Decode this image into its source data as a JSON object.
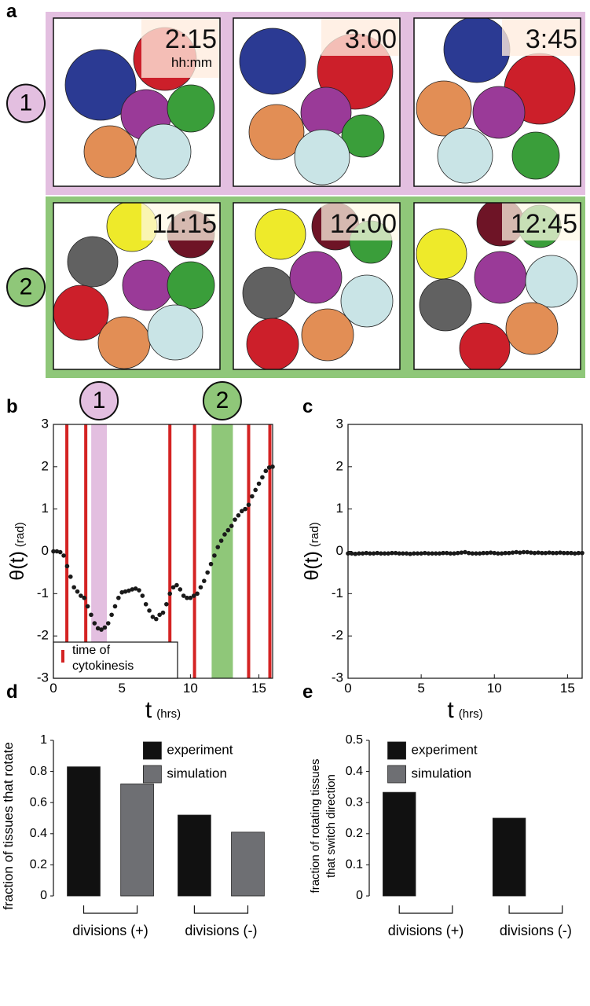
{
  "panel_a": {
    "label": "a",
    "unit": "hh:mm",
    "rows": [
      {
        "label": "1",
        "times": [
          "2:15",
          "3:00",
          "3:45"
        ]
      },
      {
        "label": "2",
        "times": [
          "11:15",
          "12:00",
          "12:45"
        ]
      }
    ]
  },
  "chart_data": [
    {
      "type": "scatter",
      "panel": "b",
      "ylabel": "θ(t)",
      "ylabel_unit": "(rad)",
      "xlabel": "t",
      "xlabel_unit": "(hrs)",
      "color": "#1a1a1a",
      "x": [
        0,
        0.25,
        0.5,
        0.75,
        1,
        1.25,
        1.5,
        1.75,
        2,
        2.25,
        2.5,
        2.75,
        3,
        3.25,
        3.5,
        3.75,
        4,
        4.25,
        4.5,
        4.75,
        5,
        5.25,
        5.5,
        5.75,
        6,
        6.25,
        6.5,
        6.75,
        7,
        7.25,
        7.5,
        7.75,
        8,
        8.25,
        8.5,
        8.75,
        9,
        9.25,
        9.5,
        9.75,
        10,
        10.25,
        10.5,
        10.75,
        11,
        11.25,
        11.5,
        11.75,
        12,
        12.25,
        12.5,
        12.75,
        13,
        13.25,
        13.5,
        13.75,
        14,
        14.25,
        14.5,
        14.75,
        15,
        15.25,
        15.5,
        15.75,
        16
      ],
      "values": [
        0,
        0,
        -0.02,
        -0.1,
        -0.35,
        -0.6,
        -0.85,
        -0.95,
        -1.05,
        -1.1,
        -1.3,
        -1.5,
        -1.7,
        -1.82,
        -1.85,
        -1.8,
        -1.7,
        -1.5,
        -1.3,
        -1.1,
        -0.97,
        -0.95,
        -0.93,
        -0.9,
        -0.88,
        -0.92,
        -1.05,
        -1.25,
        -1.4,
        -1.55,
        -1.6,
        -1.5,
        -1.45,
        -1.25,
        -1,
        -0.85,
        -0.8,
        -0.9,
        -1.05,
        -1.1,
        -1.1,
        -1.05,
        -1,
        -0.85,
        -0.7,
        -0.5,
        -0.3,
        -0.1,
        0.1,
        0.25,
        0.4,
        0.5,
        0.6,
        0.75,
        0.85,
        0.95,
        1,
        1.1,
        1.3,
        1.45,
        1.6,
        1.75,
        1.9,
        1.98,
        2
      ],
      "xlim": [
        0,
        16
      ],
      "ylim": [
        -3,
        3
      ],
      "xticks": [
        0,
        5,
        10,
        15
      ],
      "yticks": [
        -3,
        -2,
        -1,
        0,
        1,
        2,
        3
      ],
      "events": {
        "name": "time of cytokinesis",
        "color": "#d42323",
        "x": [
          0.98,
          2.36,
          8.5,
          10.3,
          14.25,
          15.8
        ]
      },
      "highlights": [
        {
          "label": "1",
          "x": [
            2.76,
            3.9
          ],
          "color": "#e3bfe0"
        },
        {
          "label": "2",
          "x": [
            11.55,
            13.1
          ],
          "color": "#8fc779"
        }
      ],
      "legend": "lower left"
    },
    {
      "type": "scatter",
      "panel": "c",
      "ylabel": "θ(t)",
      "ylabel_unit": "(rad)",
      "xlabel": "t",
      "xlabel_unit": "(hrs)",
      "color": "#1a1a1a",
      "x": [
        0,
        0.25,
        0.5,
        0.75,
        1,
        1.25,
        1.5,
        1.75,
        2,
        2.25,
        2.5,
        2.75,
        3,
        3.25,
        3.5,
        3.75,
        4,
        4.25,
        4.5,
        4.75,
        5,
        5.25,
        5.5,
        5.75,
        6,
        6.25,
        6.5,
        6.75,
        7,
        7.25,
        7.5,
        7.75,
        8,
        8.25,
        8.5,
        8.75,
        9,
        9.25,
        9.5,
        9.75,
        10,
        10.25,
        10.5,
        10.75,
        11,
        11.25,
        11.5,
        11.75,
        12,
        12.25,
        12.5,
        12.75,
        13,
        13.25,
        13.5,
        13.75,
        14,
        14.25,
        14.5,
        14.75,
        15,
        15.25,
        15.5,
        15.75,
        16
      ],
      "values": [
        -0.05,
        -0.05,
        -0.06,
        -0.05,
        -0.05,
        -0.04,
        -0.05,
        -0.05,
        -0.04,
        -0.05,
        -0.05,
        -0.05,
        -0.04,
        -0.04,
        -0.05,
        -0.05,
        -0.05,
        -0.06,
        -0.05,
        -0.05,
        -0.05,
        -0.04,
        -0.05,
        -0.05,
        -0.05,
        -0.05,
        -0.04,
        -0.04,
        -0.05,
        -0.05,
        -0.04,
        -0.03,
        -0.02,
        -0.04,
        -0.05,
        -0.05,
        -0.05,
        -0.04,
        -0.04,
        -0.03,
        -0.04,
        -0.05,
        -0.05,
        -0.04,
        -0.04,
        -0.03,
        -0.02,
        -0.03,
        -0.02,
        -0.02,
        -0.03,
        -0.04,
        -0.03,
        -0.04,
        -0.04,
        -0.03,
        -0.04,
        -0.04,
        -0.03,
        -0.04,
        -0.04,
        -0.04,
        -0.05,
        -0.04,
        -0.04
      ],
      "xlim": [
        0,
        16
      ],
      "ylim": [
        -3,
        3
      ],
      "xticks": [
        0,
        5,
        10,
        15
      ],
      "yticks": [
        -3,
        -2,
        -1,
        0,
        1,
        2,
        3
      ]
    },
    {
      "type": "bar",
      "panel": "d",
      "ylabel": [
        "fraction of tissues that rotate"
      ],
      "categories": [
        "divisions (+)",
        "divisions (-)"
      ],
      "series": [
        {
          "name": "experiment",
          "color": "#111111",
          "values": [
            0.83,
            0.52
          ]
        },
        {
          "name": "simulation",
          "color": "#6e6f73",
          "values": [
            0.72,
            0.41
          ]
        }
      ],
      "ylim": [
        0,
        1
      ],
      "yticks": [
        0,
        0.2,
        0.4,
        0.6,
        0.8,
        1
      ],
      "legend": "upper right"
    },
    {
      "type": "bar",
      "panel": "e",
      "ylabel": [
        "fraction of rotating tissues",
        "that switch direction"
      ],
      "categories": [
        "divisions (+)",
        "divisions (-)"
      ],
      "series": [
        {
          "name": "experiment",
          "color": "#111111",
          "values": [
            0.333,
            0.25
          ]
        },
        {
          "name": "simulation",
          "color": "#6e6f73",
          "values": [
            0,
            0
          ]
        }
      ],
      "ylim": [
        0,
        0.5
      ],
      "yticks": [
        0,
        0.1,
        0.2,
        0.3,
        0.4,
        0.5
      ],
      "legend": "upper left"
    }
  ]
}
